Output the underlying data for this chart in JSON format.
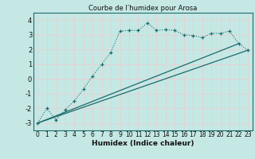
{
  "title": "Courbe de l’humidex pour Arosa",
  "xlabel": "Humidex (Indice chaleur)",
  "bg_color": "#c5e8e5",
  "line_color": "#1a6b6b",
  "grid_color": "#e8d0d0",
  "xlim": [
    -0.5,
    23.5
  ],
  "ylim": [
    -3.5,
    4.5
  ],
  "yticks": [
    -3,
    -2,
    -1,
    0,
    1,
    2,
    3,
    4
  ],
  "xticks": [
    0,
    1,
    2,
    3,
    4,
    5,
    6,
    7,
    8,
    9,
    10,
    11,
    12,
    13,
    14,
    15,
    16,
    17,
    18,
    19,
    20,
    21,
    22,
    23
  ],
  "curve_x": [
    0,
    1,
    2,
    3,
    4,
    5,
    6,
    7,
    8,
    9,
    10,
    11,
    12,
    13,
    14,
    15,
    16,
    17,
    18,
    19,
    20,
    21,
    22,
    23
  ],
  "curve_y": [
    -3.0,
    -2.0,
    -2.8,
    -2.1,
    -1.5,
    -0.7,
    0.2,
    1.0,
    1.8,
    3.25,
    3.3,
    3.3,
    3.8,
    3.3,
    3.35,
    3.3,
    3.0,
    2.95,
    2.8,
    3.1,
    3.1,
    3.25,
    2.4,
    1.95
  ],
  "line1_x": [
    0,
    23
  ],
  "line1_y": [
    -3.0,
    1.95
  ],
  "line2_x": [
    0,
    22
  ],
  "line2_y": [
    -3.0,
    2.4
  ],
  "title_fontsize": 6.0,
  "xlabel_fontsize": 6.5,
  "tick_fontsize": 5.5
}
